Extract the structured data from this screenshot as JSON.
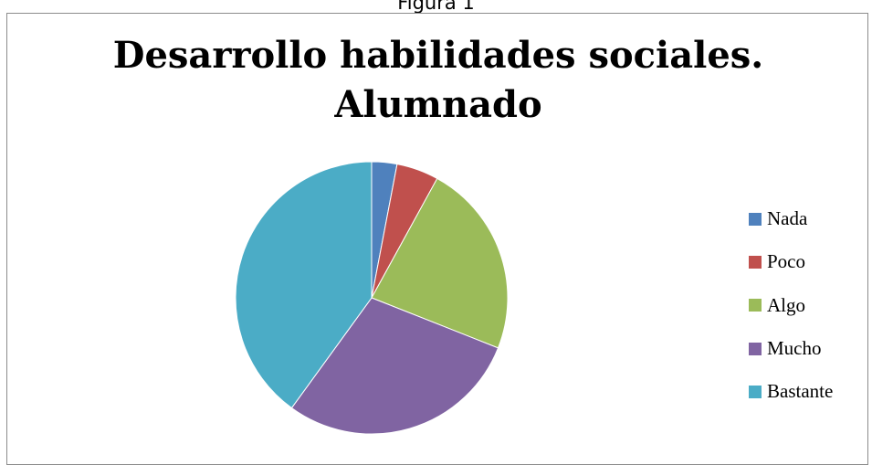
{
  "caption": "Figura 1",
  "chart_data": {
    "type": "pie",
    "title_lines": [
      "Desarrollo habilidades sociales.",
      "Alumnado"
    ],
    "legend_position": "right",
    "slices": [
      {
        "label": "Nada",
        "value": 3,
        "color": "#4f81bd"
      },
      {
        "label": "Poco",
        "value": 5,
        "color": "#c0504d"
      },
      {
        "label": "Algo",
        "value": 23,
        "color": "#9bbb59"
      },
      {
        "label": "Mucho",
        "value": 29,
        "color": "#8064a2"
      },
      {
        "label": "Bastante",
        "value": 40,
        "color": "#4bacc6"
      }
    ]
  }
}
